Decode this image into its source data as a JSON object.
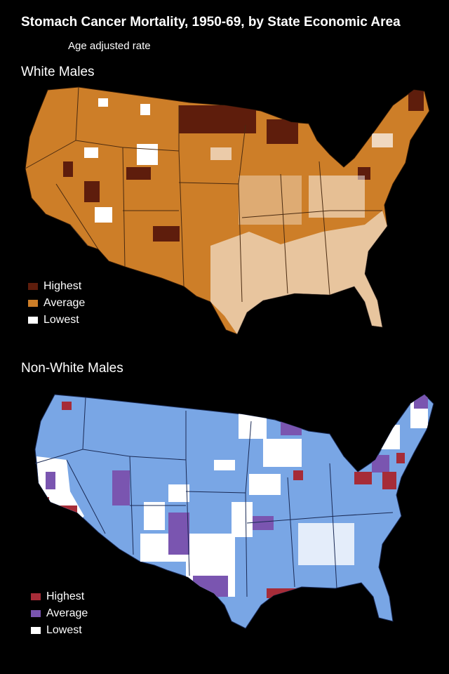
{
  "header": {
    "title": "Stomach Cancer Mortality, 1950-69, by State Economic Area",
    "subtitle": "Age adjusted rate"
  },
  "maps": [
    {
      "label": "White Males",
      "colors": {
        "highest": "#5e1d0c",
        "average": "#cd7e28",
        "lowest": "#ffffff",
        "border": "#4a2a10"
      },
      "legend": [
        {
          "label": "Highest",
          "color": "#5e1d0c"
        },
        {
          "label": "Average",
          "color": "#cd7e28"
        },
        {
          "label": "Lowest",
          "color": "#ffffff"
        }
      ]
    },
    {
      "label": "Non-White Males",
      "colors": {
        "highest": "#a62c38",
        "average": "#7a55b0",
        "lowest": "#ffffff",
        "base": "#79a6e5",
        "border": "#2a3d6a"
      },
      "legend": [
        {
          "label": "Highest",
          "color": "#a62c38"
        },
        {
          "label": "Average",
          "color": "#7a55b0"
        },
        {
          "label": "Lowest",
          "color": "#ffffff"
        }
      ]
    }
  ]
}
